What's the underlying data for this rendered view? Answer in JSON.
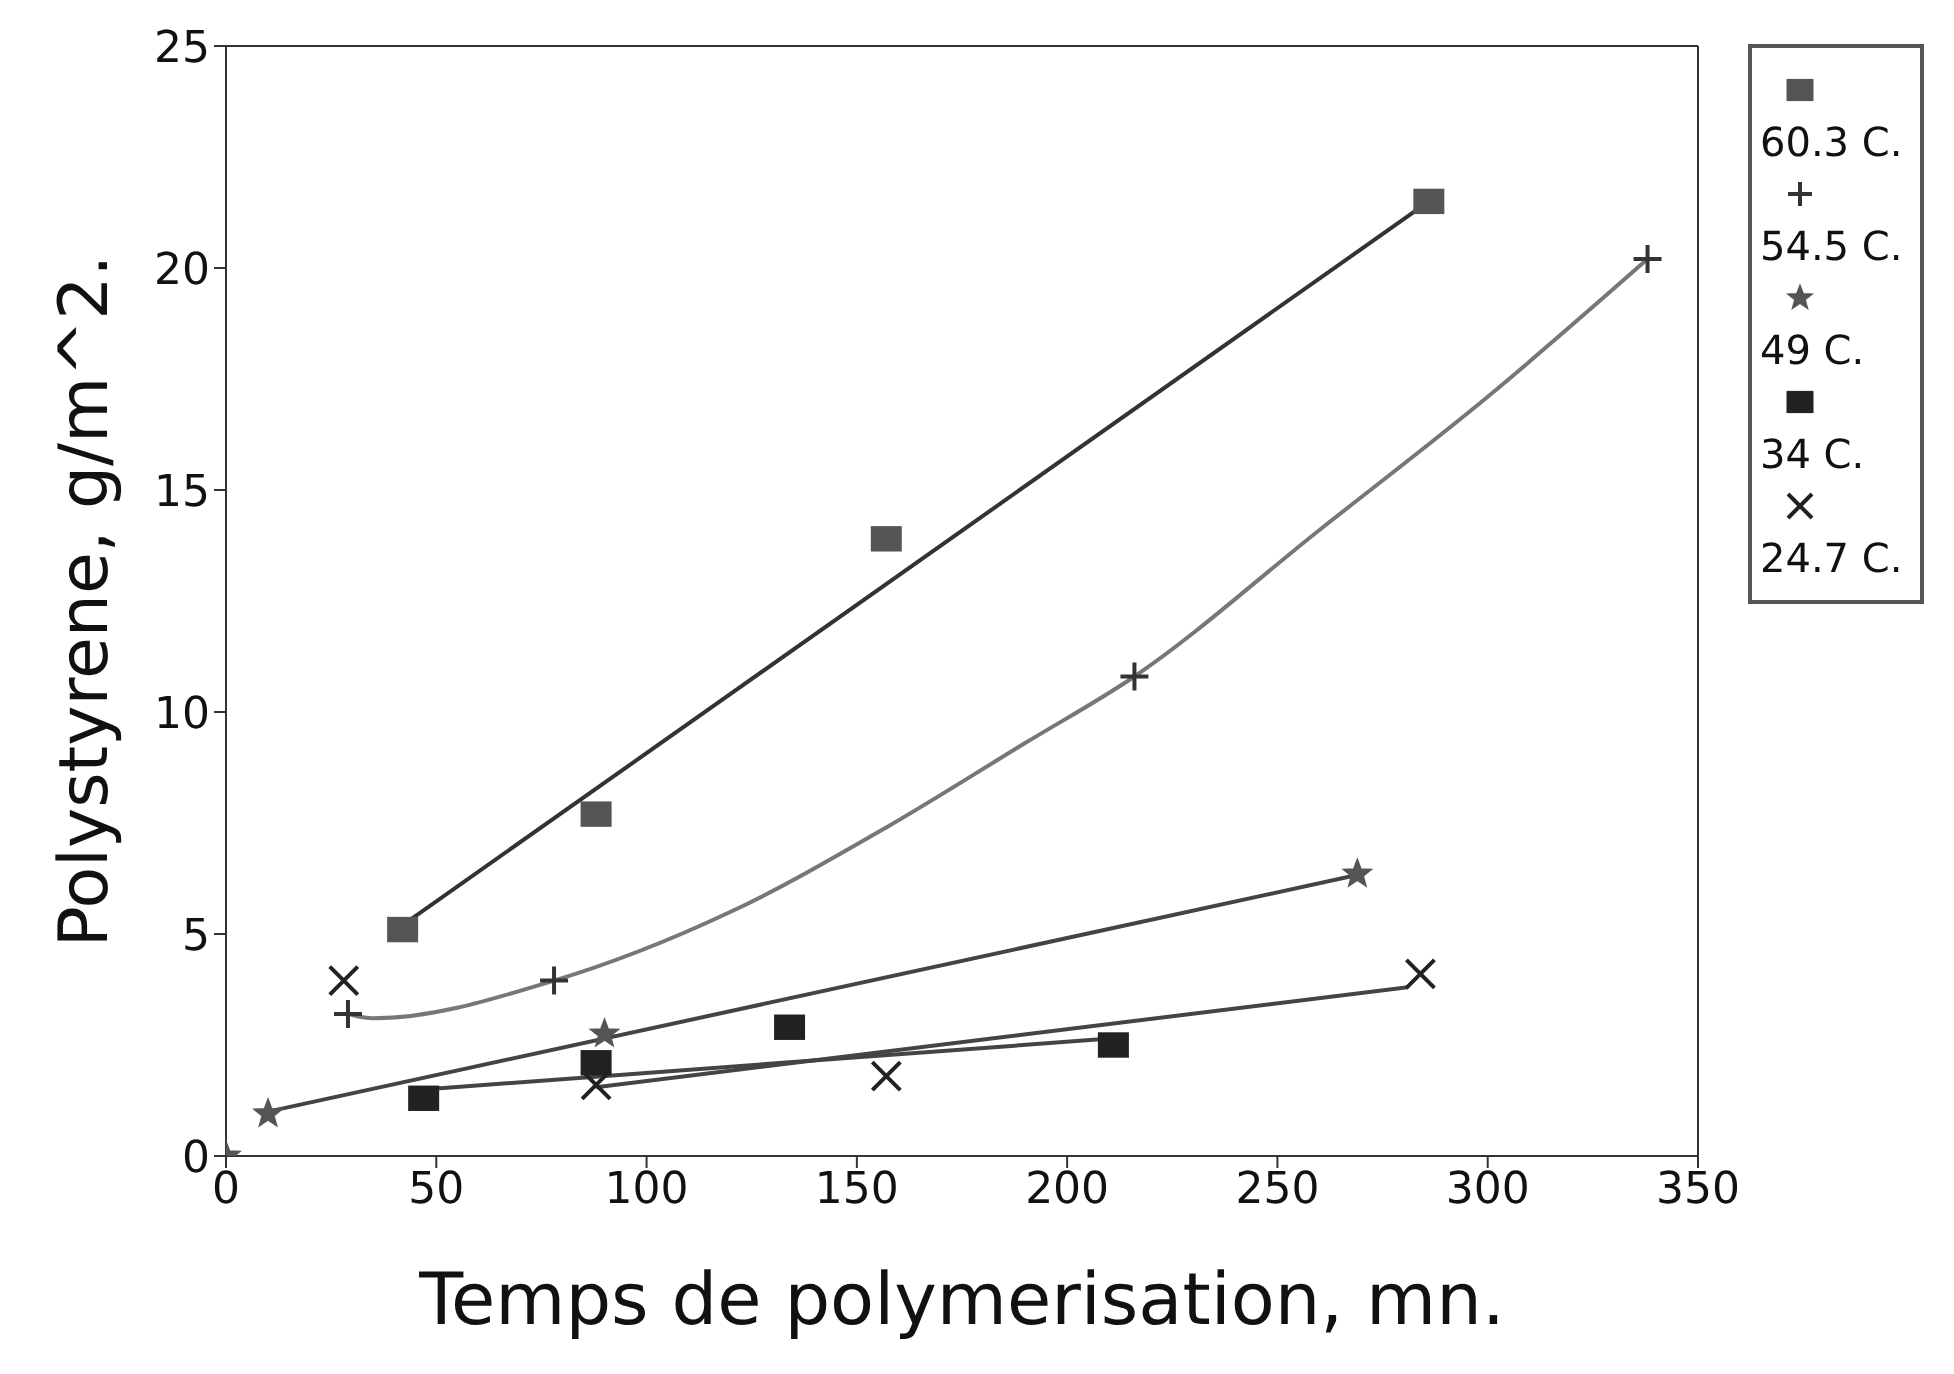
{
  "chart_data": {
    "type": "scatter",
    "xlabel": "Temps de polymerisation,  mn.",
    "ylabel": "Polystyrene,  g/m^2.",
    "xlim": [
      0,
      350
    ],
    "ylim": [
      0,
      25
    ],
    "xticks": [
      0,
      50,
      100,
      150,
      200,
      250,
      300,
      350
    ],
    "yticks": [
      0,
      5,
      10,
      15,
      20,
      25
    ],
    "grid": false,
    "legend": "right",
    "series": [
      {
        "name": "60.3 C.",
        "marker": "square",
        "color": "#555555",
        "x": [
          42,
          88,
          157,
          286
        ],
        "values": [
          5.1,
          7.7,
          13.9,
          21.5
        ]
      },
      {
        "name": "54.5 C.",
        "marker": "cross",
        "color": "#333333",
        "x": [
          29,
          78,
          216,
          338
        ],
        "values": [
          3.2,
          3.95,
          10.8,
          20.2
        ]
      },
      {
        "name": "49 C.",
        "marker": "star",
        "color": "#555555",
        "x": [
          0,
          10,
          90,
          269
        ],
        "values": [
          0,
          0.95,
          2.75,
          6.35
        ]
      },
      {
        "name": "34 C.",
        "marker": "square",
        "color": "#222222",
        "x": [
          47,
          88,
          134,
          211
        ],
        "values": [
          1.3,
          2.1,
          2.9,
          2.5
        ]
      },
      {
        "name": "24.7 C.",
        "marker": "x",
        "color": "#222222",
        "x": [
          28,
          88,
          157,
          284
        ],
        "values": [
          3.95,
          1.6,
          1.8,
          4.1
        ]
      },
      {
        "type": "line",
        "marker": "none",
        "color": "#333333",
        "x": [
          42,
          286
        ],
        "values": [
          5.2,
          21.5
        ]
      },
      {
        "type": "line",
        "marker": "none",
        "color": "#777777",
        "x": [
          29,
          35,
          78,
          120,
          157,
          190,
          216,
          260,
          300,
          338
        ],
        "values": [
          3.2,
          3.1,
          3.95,
          5.5,
          7.4,
          9.3,
          10.8,
          14.1,
          17.1,
          20.2
        ]
      },
      {
        "type": "line",
        "marker": "none",
        "color": "#444444",
        "x": [
          10,
          270
        ],
        "values": [
          1.0,
          6.35
        ]
      },
      {
        "type": "line",
        "marker": "none",
        "color": "#444444",
        "x": [
          47,
          211
        ],
        "values": [
          1.5,
          2.65
        ]
      },
      {
        "type": "line",
        "marker": "none",
        "color": "#444444",
        "x": [
          88,
          281
        ],
        "values": [
          1.55,
          3.8
        ]
      }
    ]
  }
}
